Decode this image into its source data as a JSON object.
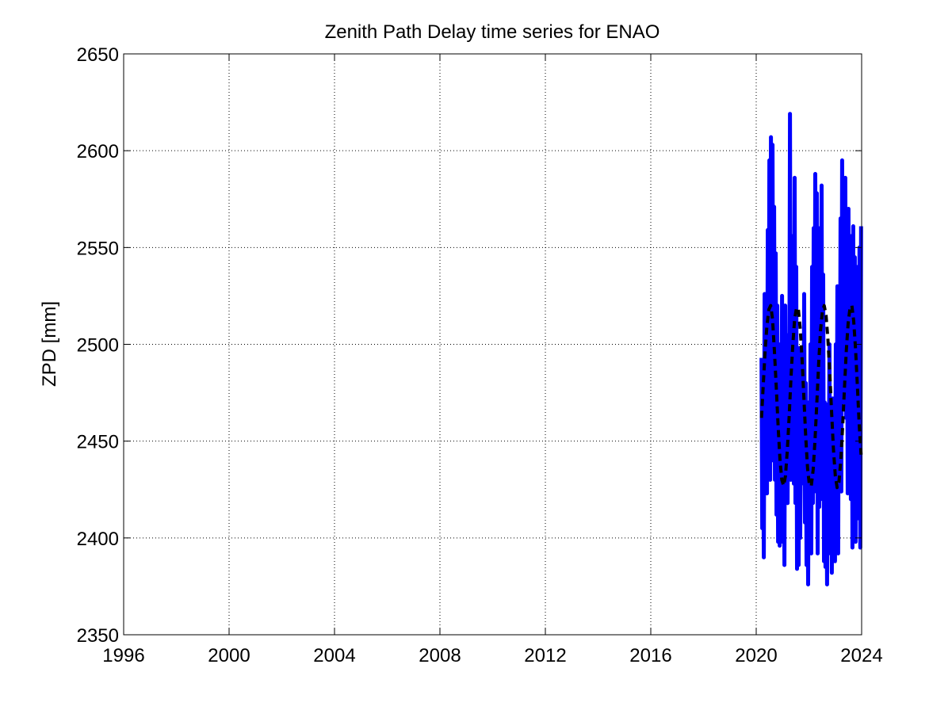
{
  "chart_data": {
    "type": "line",
    "title": "Zenith Path Delay time series for ENAO",
    "xlabel": "",
    "ylabel": "ZPD [mm]",
    "xlim": [
      1996,
      2024
    ],
    "ylim": [
      2350,
      2650
    ],
    "xticks": [
      1996,
      2000,
      2004,
      2008,
      2012,
      2016,
      2020,
      2024
    ],
    "yticks": [
      2350,
      2400,
      2450,
      2500,
      2550,
      2600,
      2650
    ],
    "grid": true,
    "grid_style": "dotted",
    "legend": "none",
    "series": [
      {
        "style": "solid",
        "color": "#0000ff",
        "x": [
          2020.2,
          2020.23,
          2020.26,
          2020.29,
          2020.32,
          2020.35,
          2020.38,
          2020.41,
          2020.44,
          2020.47,
          2020.5,
          2020.53,
          2020.56,
          2020.59,
          2020.62,
          2020.65,
          2020.68,
          2020.71,
          2020.74,
          2020.77,
          2020.8,
          2020.83,
          2020.86,
          2020.89,
          2020.92,
          2020.95,
          2020.98,
          2021.01,
          2021.04,
          2021.07,
          2021.1,
          2021.13,
          2021.16,
          2021.19,
          2021.22,
          2021.25,
          2021.28,
          2021.31,
          2021.34,
          2021.37,
          2021.4,
          2021.43,
          2021.46,
          2021.49,
          2021.52,
          2021.55,
          2021.58,
          2021.61,
          2021.64,
          2021.67,
          2021.7,
          2021.73,
          2021.76,
          2021.79,
          2021.82,
          2021.85,
          2021.88,
          2021.91,
          2021.94,
          2021.97,
          2022.0,
          2022.03,
          2022.06,
          2022.09,
          2022.12,
          2022.15,
          2022.18,
          2022.21,
          2022.24,
          2022.27,
          2022.3,
          2022.33,
          2022.36,
          2022.39,
          2022.42,
          2022.45,
          2022.48,
          2022.51,
          2022.54,
          2022.57,
          2022.6,
          2022.63,
          2022.66,
          2022.69,
          2022.72,
          2022.75,
          2022.78,
          2022.81,
          2022.84,
          2022.87,
          2022.9,
          2022.93,
          2022.96,
          2022.99,
          2023.02,
          2023.05,
          2023.08,
          2023.11,
          2023.14,
          2023.17,
          2023.2,
          2023.23,
          2023.26,
          2023.29,
          2023.32,
          2023.35,
          2023.38,
          2023.41,
          2023.44,
          2023.47,
          2023.5,
          2023.53,
          2023.56,
          2023.59,
          2023.62,
          2023.65,
          2023.68,
          2023.71,
          2023.74,
          2023.77,
          2023.8,
          2023.83,
          2023.86,
          2023.89,
          2023.92,
          2023.95,
          2023.98
        ],
        "y": [
          2493,
          2405,
          2462,
          2390,
          2526,
          2440,
          2500,
          2423,
          2559,
          2445,
          2595,
          2430,
          2607,
          2465,
          2603,
          2440,
          2571,
          2430,
          2547,
          2412,
          2520,
          2398,
          2478,
          2396,
          2500,
          2398,
          2525,
          2410,
          2500,
          2386,
          2520,
          2430,
          2498,
          2418,
          2505,
          2440,
          2619,
          2430,
          2556,
          2440,
          2547,
          2428,
          2586,
          2418,
          2540,
          2384,
          2470,
          2386,
          2498,
          2400,
          2470,
          2428,
          2498,
          2440,
          2526,
          2408,
          2480,
          2386,
          2455,
          2376,
          2470,
          2400,
          2500,
          2392,
          2540,
          2418,
          2560,
          2436,
          2588,
          2424,
          2578,
          2392,
          2560,
          2416,
          2540,
          2440,
          2582,
          2420,
          2536,
          2388,
          2470,
          2385,
          2450,
          2376,
          2469,
          2420,
          2500,
          2392,
          2470,
          2382,
          2472,
          2400,
          2460,
          2388,
          2500,
          2410,
          2530,
          2392,
          2526,
          2430,
          2565,
          2424,
          2595,
          2470,
          2583,
          2472,
          2586,
          2462,
          2561,
          2423,
          2570,
          2424,
          2540,
          2420,
          2556,
          2395,
          2561,
          2400,
          2545,
          2398,
          2531,
          2415,
          2540,
          2410,
          2550,
          2395,
          2561
        ]
      },
      {
        "style": "dashed",
        "color": "#000000",
        "x": [
          2020.2,
          2020.27,
          2020.34,
          2020.41,
          2020.48,
          2020.55,
          2020.62,
          2020.69,
          2020.76,
          2020.83,
          2020.9,
          2020.97,
          2021.04,
          2021.11,
          2021.18,
          2021.25,
          2021.32,
          2021.39,
          2021.46,
          2021.53,
          2021.6,
          2021.67,
          2021.74,
          2021.81,
          2021.88,
          2021.95,
          2022.02,
          2022.09,
          2022.16,
          2022.23,
          2022.3,
          2022.37,
          2022.44,
          2022.51,
          2022.58,
          2022.65,
          2022.72,
          2022.79,
          2022.86,
          2022.93,
          2023.0,
          2023.07,
          2023.14,
          2023.21,
          2023.28,
          2023.35,
          2023.42,
          2023.49,
          2023.56,
          2023.63,
          2023.7,
          2023.77,
          2023.84,
          2023.91,
          2023.98
        ],
        "y": [
          2462,
          2480,
          2497,
          2510,
          2518,
          2520,
          2513,
          2497,
          2478,
          2458,
          2441,
          2430,
          2427,
          2432,
          2445,
          2463,
          2483,
          2500,
          2513,
          2519,
          2518,
          2508,
          2492,
          2472,
          2452,
          2436,
          2427,
          2427,
          2435,
          2450,
          2470,
          2490,
          2507,
          2517,
          2520,
          2515,
          2503,
          2485,
          2465,
          2446,
          2432,
          2426,
          2429,
          2440,
          2458,
          2478,
          2497,
          2511,
          2519,
          2520,
          2512,
          2497,
          2478,
          2458,
          2443
        ]
      }
    ]
  }
}
